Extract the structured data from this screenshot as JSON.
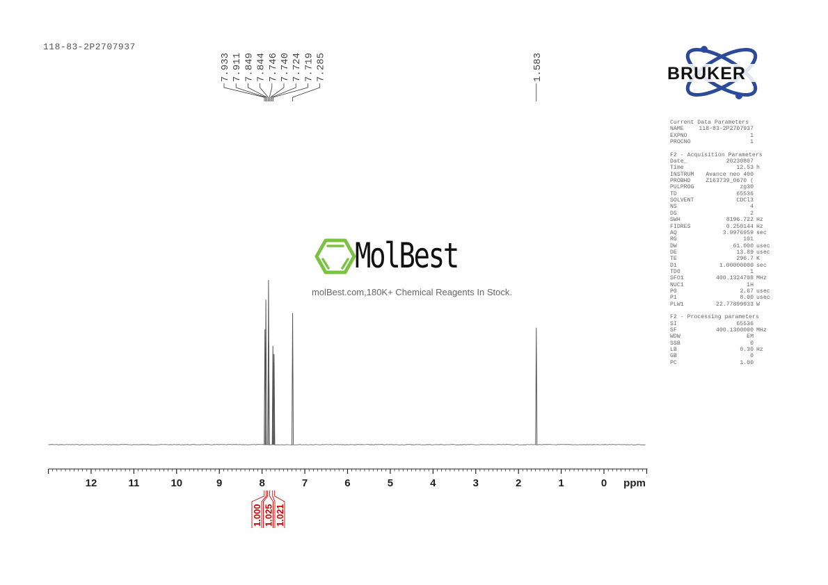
{
  "sample_name": "118-83-2P2707937",
  "watermark": {
    "brand": "MolBest",
    "tagline": "molBest.com,180K+ Chemical Reagents In Stock.",
    "brand_color": "#7cc242"
  },
  "logo": {
    "text": "BRUKER",
    "color": "#2c4a9a"
  },
  "parameters": {
    "current": {
      "title": "Current Data Parameters",
      "rows": [
        [
          "NAME",
          "118-83-2P2707937",
          ""
        ],
        [
          "EXPNO",
          "1",
          ""
        ],
        [
          "PROCNO",
          "1",
          ""
        ]
      ]
    },
    "acquisition": {
      "title": "F2 - Acquisition Parameters",
      "rows": [
        [
          "Date_",
          "20230807",
          ""
        ],
        [
          "Time",
          "12.53",
          "h"
        ],
        [
          "INSTRUM",
          "Avance neo 400",
          ""
        ],
        [
          "PROBHD",
          "Z163739_0670 (",
          ""
        ],
        [
          "PULPROG",
          "zg30",
          ""
        ],
        [
          "TD",
          "65536",
          ""
        ],
        [
          "SOLVENT",
          "CDCl3",
          ""
        ],
        [
          "NS",
          "4",
          ""
        ],
        [
          "DS",
          "2",
          ""
        ],
        [
          "SWH",
          "8196.722",
          "Hz"
        ],
        [
          "FIDRES",
          "0.250144",
          "Hz"
        ],
        [
          "AQ",
          "3.9976959",
          "sec"
        ],
        [
          "RG",
          "101",
          ""
        ],
        [
          "DW",
          "61.000",
          "usec"
        ],
        [
          "DE",
          "13.89",
          "usec"
        ],
        [
          "TE",
          "296.7",
          "K"
        ],
        [
          "D1",
          "1.00000000",
          "sec"
        ],
        [
          "TD0",
          "1",
          ""
        ],
        [
          "SFO1",
          "400.1324708",
          "MHz"
        ],
        [
          "NUC1",
          "1H",
          ""
        ],
        [
          "P0",
          "2.67",
          "usec"
        ],
        [
          "P1",
          "8.00",
          "usec"
        ],
        [
          "PLW1",
          "22.77899933",
          "W"
        ]
      ]
    },
    "processing": {
      "title": "F2 - Processing parameters",
      "rows": [
        [
          "SI",
          "65536",
          ""
        ],
        [
          "SF",
          "400.1300000",
          "MHz"
        ],
        [
          "WDW",
          "EM",
          ""
        ],
        [
          "SSB",
          "0",
          ""
        ],
        [
          "LB",
          "0.30",
          "Hz"
        ],
        [
          "GB",
          "0",
          ""
        ],
        [
          "PC",
          "1.00",
          ""
        ]
      ]
    }
  },
  "chart_data": {
    "type": "line",
    "xlabel": "ppm",
    "xlim": [
      13,
      -1
    ],
    "x_reversed": true,
    "x_ticks": [
      "12",
      "11",
      "10",
      "9",
      "8",
      "7",
      "6",
      "5",
      "4",
      "3",
      "2",
      "1",
      "0"
    ],
    "grid": false,
    "peak_labels": [
      "7.933",
      "7.911",
      "7.849",
      "7.844",
      "7.746",
      "7.740",
      "7.724",
      "7.719",
      "7.285",
      "1.583"
    ],
    "peaks": [
      {
        "ppm": 7.933,
        "intensity": 0.7
      },
      {
        "ppm": 7.911,
        "intensity": 0.88
      },
      {
        "ppm": 7.849,
        "intensity": 1.0
      },
      {
        "ppm": 7.844,
        "intensity": 0.62
      },
      {
        "ppm": 7.746,
        "intensity": 0.6
      },
      {
        "ppm": 7.74,
        "intensity": 0.55
      },
      {
        "ppm": 7.724,
        "intensity": 0.5
      },
      {
        "ppm": 7.719,
        "intensity": 0.55
      },
      {
        "ppm": 7.285,
        "intensity": 0.8
      },
      {
        "ppm": 1.583,
        "intensity": 0.71
      }
    ],
    "integrals": [
      {
        "from": 7.95,
        "to": 7.9,
        "value": "1.000"
      },
      {
        "from": 7.87,
        "to": 7.82,
        "value": "1.025"
      },
      {
        "from": 7.76,
        "to": 7.7,
        "value": "1.021"
      }
    ],
    "line_color": "#555555",
    "integral_color": "#cc0000"
  }
}
